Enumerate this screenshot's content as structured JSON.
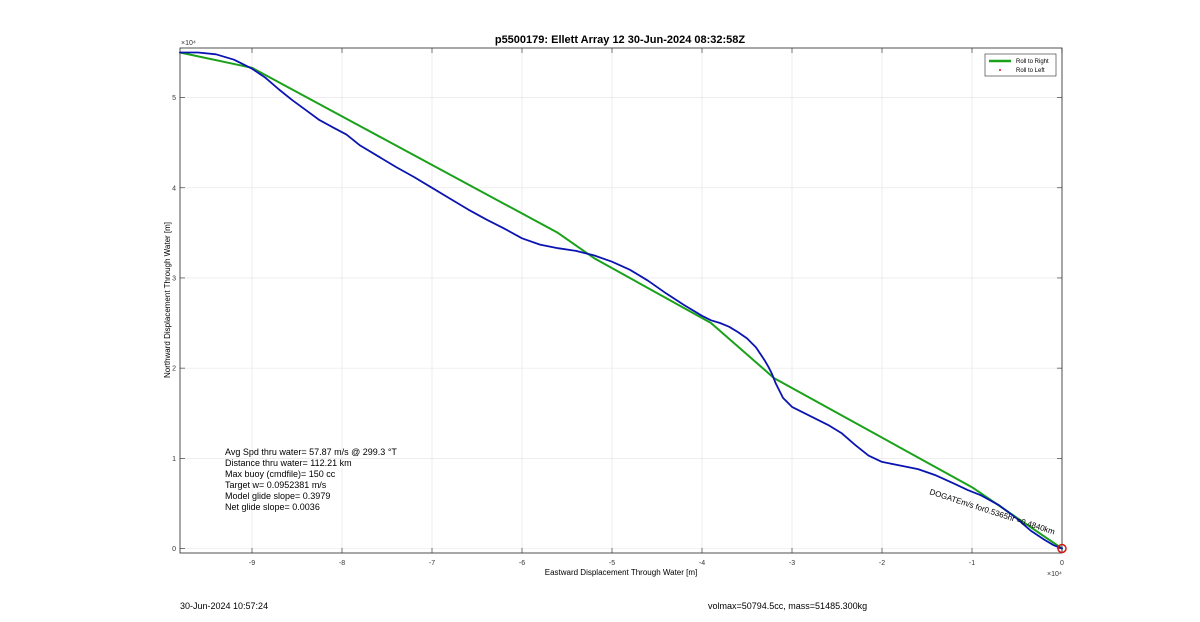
{
  "chart_data": {
    "type": "line",
    "title": "p5500179: Ellett Array 12 30-Jun-2024 08:32:58Z",
    "xlabel": "Eastward Displacement Through Water [m]",
    "ylabel": "Northward Displacement Through Water [m]",
    "x_exponent_label": "×10⁴",
    "y_exponent_label": "×10⁴",
    "xlim": [
      -98000,
      0
    ],
    "ylim": [
      -500,
      55500
    ],
    "x_ticks": [
      -90000,
      -80000,
      -70000,
      -60000,
      -50000,
      -40000,
      -30000,
      -20000,
      -10000,
      0
    ],
    "x_tick_labels": [
      "-9",
      "-8",
      "-7",
      "-6",
      "-5",
      "-4",
      "-3",
      "-2",
      "-1",
      "0"
    ],
    "y_ticks": [
      0,
      10000,
      20000,
      30000,
      40000,
      50000
    ],
    "y_tick_labels": [
      "0",
      "1",
      "2",
      "3",
      "4",
      "5"
    ],
    "grid": true,
    "legend_position": "top-right",
    "series": [
      {
        "name": "Roll to Right",
        "color": "#1aa11a",
        "style": "line",
        "x": [
          0,
          -10000,
          -32000,
          -39000,
          -52000,
          -56000,
          -90000,
          -98000
        ],
        "y": [
          0,
          6800,
          18900,
          25000,
          32200,
          35000,
          53300,
          55000
        ]
      },
      {
        "name": "Roll to Left",
        "color": "#d01818",
        "style": "marker",
        "x": [
          0
        ],
        "y": [
          0
        ]
      },
      {
        "name": "",
        "color": "#0a14b0",
        "style": "line",
        "x": [
          0,
          -1000,
          -2000,
          -3500,
          -5000,
          -7000,
          -9000,
          -10500,
          -12000,
          -14000,
          -16000,
          -18000,
          -20000,
          -21500,
          -23000,
          -24500,
          -26000,
          -28000,
          -30000,
          -31000,
          -31800,
          -32200,
          -32600,
          -33000,
          -34000,
          -35000,
          -36000,
          -37000,
          -38000,
          -39000,
          -40000,
          -42000,
          -44000,
          -46000,
          -48000,
          -50000,
          -52000,
          -54000,
          -56000,
          -58000,
          -60000,
          -62000,
          -64000,
          -66000,
          -68000,
          -70000,
          -72000,
          -74000,
          -76000,
          -78000,
          -79500,
          -81000,
          -82500,
          -84000,
          -85500,
          -87000,
          -88500,
          -90000,
          -92000,
          -94000,
          -96000,
          -98000
        ],
        "y": [
          0,
          400,
          1000,
          2000,
          3300,
          4800,
          5900,
          6500,
          7200,
          8100,
          8800,
          9200,
          9600,
          10300,
          11500,
          12800,
          13700,
          14700,
          15700,
          16700,
          18300,
          19300,
          20100,
          20800,
          22300,
          23300,
          24000,
          24600,
          25000,
          25300,
          25800,
          27000,
          28300,
          29700,
          30900,
          31800,
          32500,
          33000,
          33300,
          33700,
          34400,
          35500,
          36500,
          37600,
          38800,
          40000,
          41200,
          42300,
          43500,
          44700,
          45900,
          46700,
          47500,
          48600,
          49700,
          50900,
          52200,
          53200,
          54200,
          54800,
          55000,
          55000
        ]
      }
    ],
    "annotations": {
      "stats": [
        "Avg Spd thru water= 57.87 m/s @ 299.3 °T",
        "Distance thru water= 112.21 km",
        "Max buoy (cmdfile)= 150 cc",
        "Target w= 0.0952381 m/s",
        "Model glide slope= 0.3979",
        "Net glide slope= 0.0036"
      ],
      "rotated_label": "DOGATEm/s for0.5365hr =0.4840km"
    }
  },
  "footer": {
    "timestamp": "30-Jun-2024 10:57:24",
    "params": "volmax=50794.5cc, mass=51485.300kg"
  }
}
